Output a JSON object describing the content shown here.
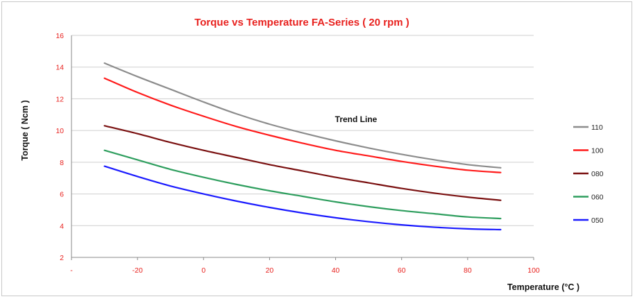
{
  "chart_data": {
    "type": "line",
    "title": "Torque vs Temperature FA-Series ( 20 rpm )",
    "xlabel": "Temperature  (°C )",
    "ylabel": "Torque ( Ncm )",
    "xlim": [
      -40,
      100
    ],
    "ylim": [
      2,
      16
    ],
    "x_ticks": [
      "-",
      "-20",
      "0",
      "20",
      "40",
      "60",
      "80",
      "100"
    ],
    "y_ticks": [
      "2",
      "4",
      "6",
      "8",
      "10",
      "12",
      "14",
      "16"
    ],
    "grid": "horizontal",
    "legend_position": "right",
    "annotation": "Trend Line",
    "x": [
      -30,
      -20,
      -10,
      0,
      10,
      20,
      30,
      40,
      50,
      60,
      70,
      80,
      90
    ],
    "series": [
      {
        "name": "110",
        "color": "#8c8c8c",
        "values": [
          14.25,
          13.4,
          12.6,
          11.8,
          11.05,
          10.4,
          9.85,
          9.35,
          8.9,
          8.5,
          8.15,
          7.85,
          7.65
        ]
      },
      {
        "name": "100",
        "color": "#ff1a1a",
        "values": [
          13.3,
          12.4,
          11.6,
          10.9,
          10.25,
          9.7,
          9.2,
          8.75,
          8.4,
          8.05,
          7.75,
          7.5,
          7.35
        ]
      },
      {
        "name": "080",
        "color": "#7a1010",
        "values": [
          10.3,
          9.8,
          9.25,
          8.75,
          8.3,
          7.85,
          7.45,
          7.05,
          6.7,
          6.35,
          6.05,
          5.8,
          5.6
        ]
      },
      {
        "name": "060",
        "color": "#2e9e5e",
        "values": [
          8.75,
          8.15,
          7.55,
          7.05,
          6.6,
          6.2,
          5.85,
          5.5,
          5.2,
          4.95,
          4.75,
          4.55,
          4.45
        ]
      },
      {
        "name": "050",
        "color": "#1a1aff",
        "values": [
          7.75,
          7.1,
          6.5,
          6.0,
          5.55,
          5.15,
          4.8,
          4.5,
          4.25,
          4.05,
          3.9,
          3.8,
          3.75
        ]
      }
    ]
  }
}
